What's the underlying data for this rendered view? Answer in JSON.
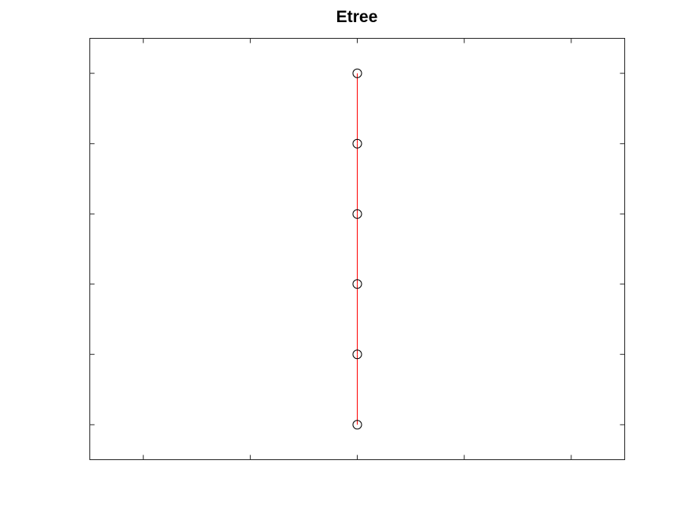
{
  "chart_data": {
    "type": "tree",
    "title": "Etree",
    "xlim": [
      0,
      1
    ],
    "ylim": [
      0,
      1
    ],
    "grid": false,
    "legend": "none",
    "xticks": [
      0.1,
      0.3,
      0.5,
      0.7,
      0.9
    ],
    "yticks": [
      0.083,
      0.25,
      0.417,
      0.583,
      0.75,
      0.917
    ],
    "nodes": [
      {
        "x": 0.5,
        "y": 0.917
      },
      {
        "x": 0.5,
        "y": 0.75
      },
      {
        "x": 0.5,
        "y": 0.583
      },
      {
        "x": 0.5,
        "y": 0.417
      },
      {
        "x": 0.5,
        "y": 0.25
      },
      {
        "x": 0.5,
        "y": 0.083
      }
    ],
    "edges": [
      [
        0,
        1
      ],
      [
        1,
        2
      ],
      [
        2,
        3
      ],
      [
        3,
        4
      ],
      [
        4,
        5
      ]
    ],
    "colors": {
      "edge": "#ff0000",
      "node": "#000000",
      "axes": "#262626"
    }
  }
}
